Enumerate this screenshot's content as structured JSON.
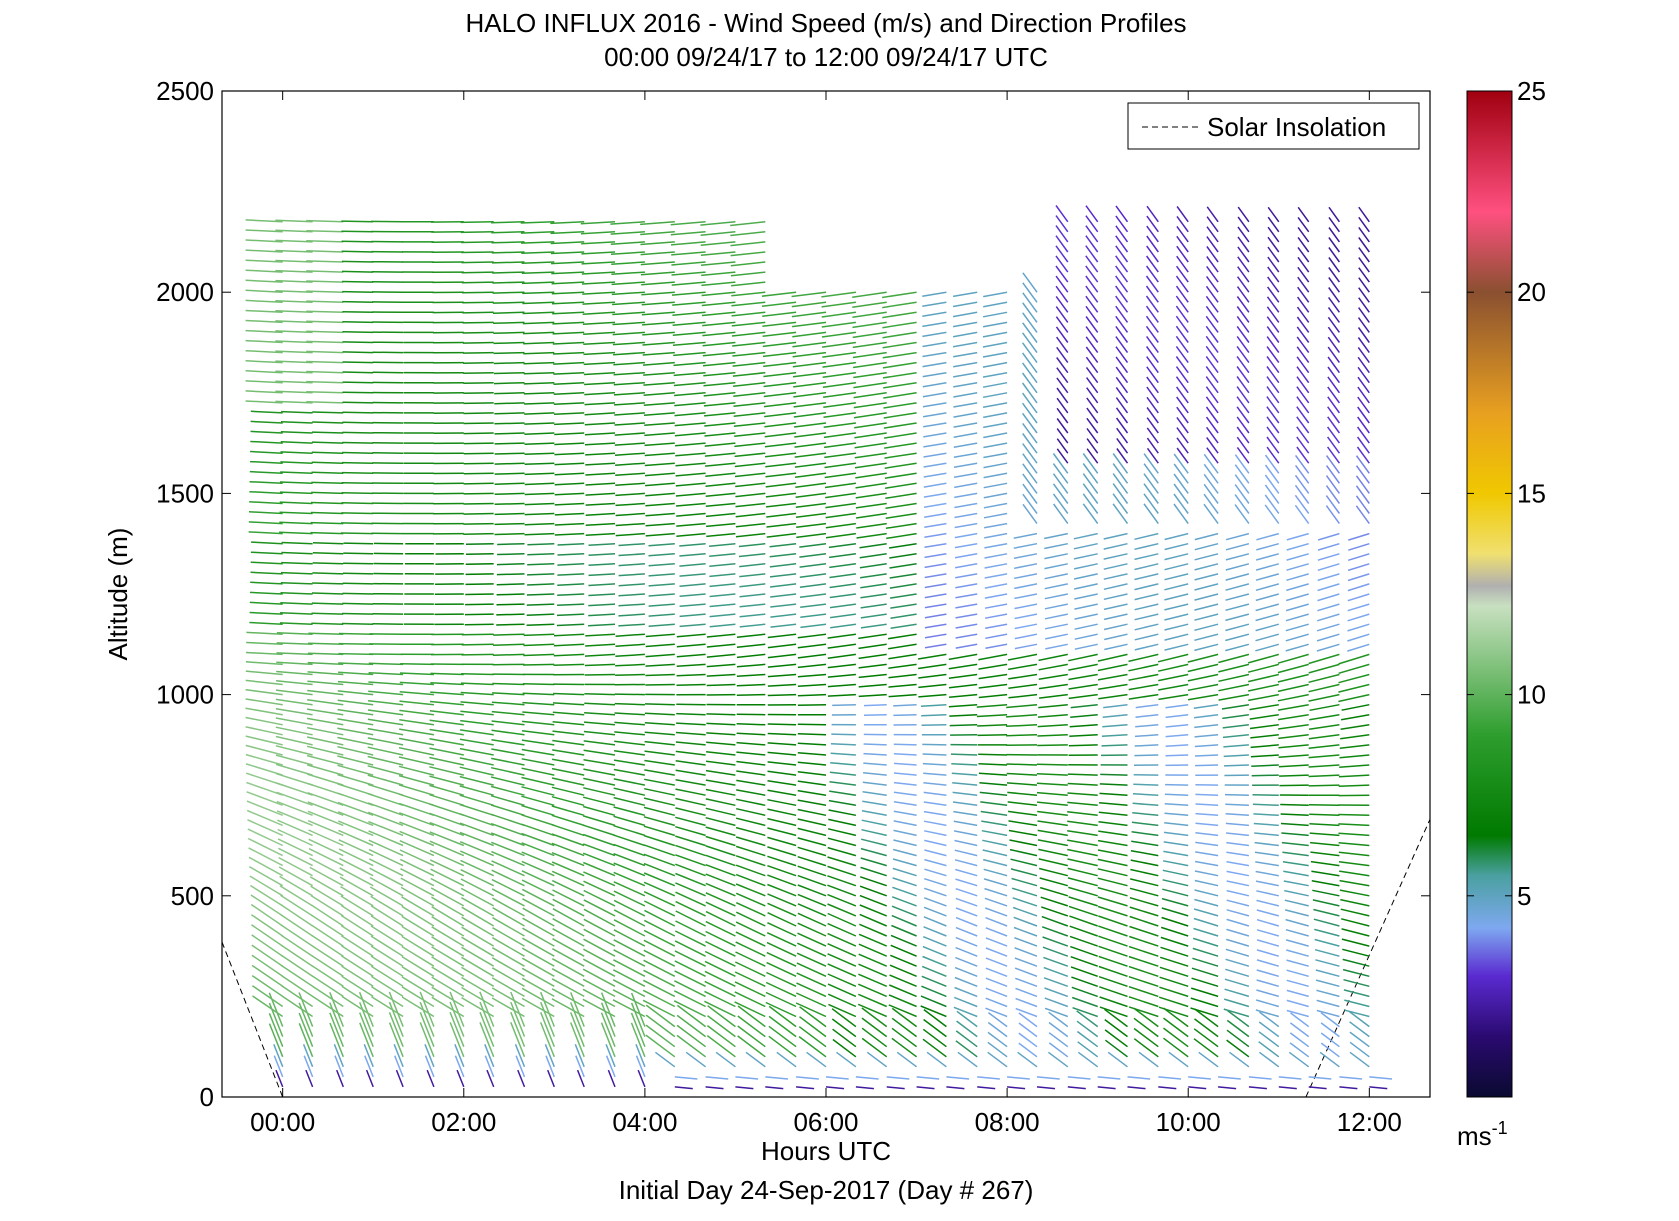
{
  "chart_data": {
    "type": "vector_field",
    "title": "HALO INFLUX 2016 - Wind Speed (m/s) and Direction Profiles",
    "subtitle": "00:00 09/24/17 to 12:00 09/24/17  UTC",
    "xlabel": "Hours UTC",
    "footer": "Initial Day 24-Sep-2017 (Day # 267)",
    "ylabel": "Altitude (m)",
    "xlim": [
      -0.67,
      12.67
    ],
    "ylim": [
      0,
      2500
    ],
    "xticks": [
      0,
      2,
      4,
      6,
      8,
      10,
      12
    ],
    "xtick_labels": [
      "00:00",
      "02:00",
      "04:00",
      "06:00",
      "08:00",
      "10:00",
      "12:00"
    ],
    "yticks": [
      0,
      500,
      1000,
      1500,
      2000,
      2500
    ],
    "ytick_labels": [
      "0",
      "500",
      "1000",
      "1500",
      "2000",
      "2500"
    ],
    "legend": {
      "label": "Solar Insolation",
      "style": "dashed",
      "position": "top-right"
    },
    "colorbar": {
      "label": "ms-1",
      "range": [
        0,
        25
      ],
      "ticks": [
        5,
        10,
        15,
        20,
        25
      ],
      "tick_labels": [
        "5",
        "10",
        "15",
        "20",
        "25"
      ],
      "stops": [
        {
          "v": 0,
          "c": "#0a0a30"
        },
        {
          "v": 1.5,
          "c": "#2a0a70"
        },
        {
          "v": 3,
          "c": "#5a2ad0"
        },
        {
          "v": 4.2,
          "c": "#7ea8f0"
        },
        {
          "v": 5.5,
          "c": "#4aa0a0"
        },
        {
          "v": 6.5,
          "c": "#007a00"
        },
        {
          "v": 9,
          "c": "#2e9e2e"
        },
        {
          "v": 12.2,
          "c": "#c8e0c0"
        },
        {
          "v": 12.7,
          "c": "#b0b0b0"
        },
        {
          "v": 13.5,
          "c": "#f0e070"
        },
        {
          "v": 15,
          "c": "#f0c800"
        },
        {
          "v": 17,
          "c": "#e8a020"
        },
        {
          "v": 20,
          "c": "#8a5030"
        },
        {
          "v": 22,
          "c": "#ff5080"
        },
        {
          "v": 25,
          "c": "#a00010"
        }
      ]
    },
    "insolation_line": [
      {
        "x": -0.67,
        "y": 385
      },
      {
        "x": 0.0,
        "y": 0
      },
      {
        "x": 11.3,
        "y": 0
      },
      {
        "x": 12.67,
        "y": 690
      }
    ],
    "profile_times": [
      0.0,
      0.33,
      0.67,
      1.0,
      1.33,
      1.67,
      2.0,
      2.33,
      2.67,
      3.0,
      3.33,
      3.67,
      4.0,
      4.33,
      4.67,
      5.0,
      5.33,
      5.67,
      6.0,
      6.33,
      6.67,
      7.0,
      7.33,
      7.67,
      8.0,
      8.33,
      8.67,
      9.0,
      9.33,
      9.67,
      10.0,
      10.33,
      10.67,
      11.0,
      11.33,
      11.67,
      12.0
    ]
  }
}
